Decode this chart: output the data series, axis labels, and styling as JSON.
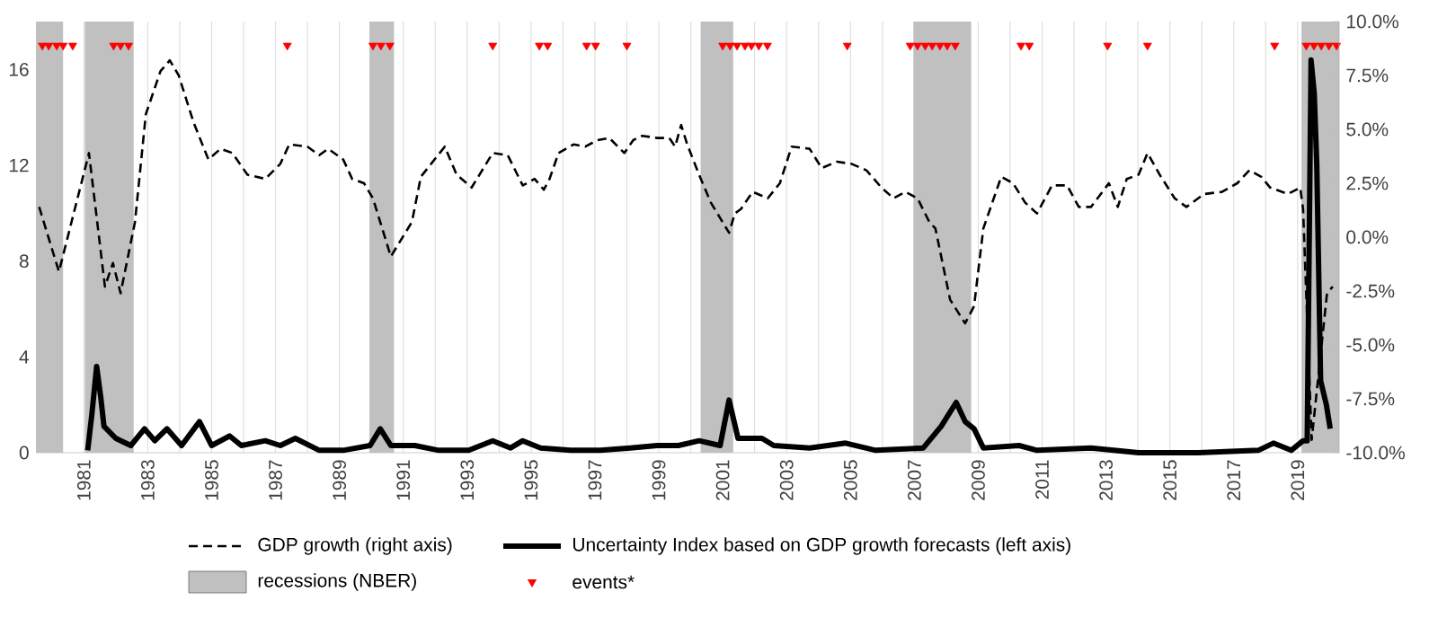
{
  "chart_data": {
    "type": "line",
    "xlim": [
      1980,
      2020.8
    ],
    "xticks": [
      {
        "value": 1980.5,
        "label": null
      },
      {
        "value": 1981.5,
        "label": "1981"
      },
      {
        "value": 1982.5,
        "label": null
      },
      {
        "value": 1983.5,
        "label": "1983"
      },
      {
        "value": 1984.5,
        "label": null
      },
      {
        "value": 1985.5,
        "label": "1985"
      },
      {
        "value": 1986.5,
        "label": null
      },
      {
        "value": 1987.5,
        "label": "1987"
      },
      {
        "value": 1988.5,
        "label": null
      },
      {
        "value": 1989.5,
        "label": "1989"
      },
      {
        "value": 1990.5,
        "label": null
      },
      {
        "value": 1991.5,
        "label": "1991"
      },
      {
        "value": 1992.5,
        "label": null
      },
      {
        "value": 1993.5,
        "label": "1993"
      },
      {
        "value": 1994.5,
        "label": null
      },
      {
        "value": 1995.5,
        "label": "1995"
      },
      {
        "value": 1996.5,
        "label": null
      },
      {
        "value": 1997.5,
        "label": "1997"
      },
      {
        "value": 1998.5,
        "label": null
      },
      {
        "value": 1999.5,
        "label": "1999"
      },
      {
        "value": 2000.5,
        "label": null
      },
      {
        "value": 2001.5,
        "label": "2001"
      },
      {
        "value": 2002.5,
        "label": null
      },
      {
        "value": 2003.5,
        "label": "2003"
      },
      {
        "value": 2004.5,
        "label": null
      },
      {
        "value": 2005.5,
        "label": "2005"
      },
      {
        "value": 2006.5,
        "label": null
      },
      {
        "value": 2007.5,
        "label": "2007"
      },
      {
        "value": 2008.5,
        "label": null
      },
      {
        "value": 2009.5,
        "label": "2009"
      },
      {
        "value": 2010.5,
        "label": null
      },
      {
        "value": 2011.5,
        "label": "2011"
      },
      {
        "value": 2012.5,
        "label": null
      },
      {
        "value": 2013.5,
        "label": "2013"
      },
      {
        "value": 2014.5,
        "label": null
      },
      {
        "value": 2015.5,
        "label": "2015"
      },
      {
        "value": 2016.5,
        "label": null
      },
      {
        "value": 2017.5,
        "label": "2017"
      },
      {
        "value": 2018.5,
        "label": null
      },
      {
        "value": 2019.5,
        "label": "2019"
      },
      {
        "value": 2020.5,
        "label": null
      }
    ],
    "ylim": [
      0,
      18
    ],
    "yticks": [
      0,
      4,
      8,
      12,
      16
    ],
    "y2lim": [
      -10,
      10
    ],
    "y2ticks": [
      {
        "value": -10,
        "label": "-10.0%"
      },
      {
        "value": -7.5,
        "label": "-7.5%"
      },
      {
        "value": -5,
        "label": "-5.0%"
      },
      {
        "value": -2.5,
        "label": "-2.5%"
      },
      {
        "value": 0,
        "label": "0.0%"
      },
      {
        "value": 2.5,
        "label": "2.5%"
      },
      {
        "value": 5,
        "label": "5.0%"
      },
      {
        "value": 7.5,
        "label": "7.5%"
      },
      {
        "value": 10,
        "label": "10.0%"
      }
    ],
    "grid": "x",
    "legend": "bottom",
    "bands": [
      {
        "axis": "x",
        "from": 1980,
        "to": 1980.85,
        "label": "recessions (NBER)",
        "color": "#c0c0c0"
      },
      {
        "axis": "x",
        "from": 1981.53,
        "to": 1983.06,
        "color": "#c0c0c0"
      },
      {
        "axis": "x",
        "from": 1990.44,
        "to": 1991.21,
        "color": "#c0c0c0"
      },
      {
        "axis": "x",
        "from": 2000.81,
        "to": 2001.83,
        "color": "#c0c0c0"
      },
      {
        "axis": "x",
        "from": 2007.47,
        "to": 2009.28,
        "color": "#c0c0c0"
      },
      {
        "axis": "x",
        "from": 2019.62,
        "to": 2020.8,
        "color": "#c0c0c0"
      }
    ],
    "series": [
      {
        "name": "GDP growth (right axis)",
        "axis": "y2",
        "color": "#000000",
        "line_style": "dashed",
        "x": [
          1980.1,
          1980.72,
          1981.66,
          1982.16,
          1982.41,
          1982.65,
          1983.1,
          1983.44,
          1983.9,
          1984.19,
          1984.47,
          1984.94,
          1985.4,
          1985.78,
          1986.15,
          1986.62,
          1987.18,
          1987.65,
          1987.93,
          1988.5,
          1988.87,
          1989.15,
          1989.62,
          1989.9,
          1990.27,
          1990.55,
          1991.11,
          1991.77,
          1992.05,
          1992.8,
          1993.17,
          1993.64,
          1994.3,
          1994.77,
          1995.24,
          1995.61,
          1995.9,
          1996.08,
          1996.36,
          1996.83,
          1997.2,
          1997.58,
          1997.95,
          1998.42,
          1998.7,
          1998.98,
          1999.45,
          1999.83,
          2000.01,
          2000.2,
          2000.39,
          2000.76,
          2001.13,
          2001.7,
          2001.88,
          2002.07,
          2002.44,
          2002.91,
          2003.29,
          2003.66,
          2004.22,
          2004.6,
          2005.07,
          2005.53,
          2006.0,
          2006.47,
          2006.85,
          2007.22,
          2007.6,
          2007.97,
          2008.16,
          2008.62,
          2009.09,
          2009.37,
          2009.66,
          2010.22,
          2010.59,
          2010.97,
          2011.34,
          2011.81,
          2012.28,
          2012.65,
          2013.03,
          2013.59,
          2013.87,
          2014.15,
          2014.52,
          2014.8,
          2015.18,
          2015.65,
          2016.02,
          2016.57,
          2017.13,
          2017.61,
          2017.99,
          2018.36,
          2018.64,
          2019.2,
          2019.58,
          2019.67,
          2019.94,
          2020.42,
          2020.6
        ],
        "values": [
          1.4,
          -1.6,
          3.9,
          -2.3,
          -1.2,
          -2.6,
          0.7,
          5.7,
          7.7,
          8.2,
          7.5,
          5.3,
          3.6,
          4.1,
          3.9,
          2.9,
          2.7,
          3.4,
          4.3,
          4.2,
          3.8,
          4.1,
          3.6,
          2.7,
          2.5,
          1.8,
          -0.9,
          0.7,
          2.8,
          4.2,
          2.9,
          2.3,
          3.9,
          3.8,
          2.4,
          2.7,
          2.2,
          2.7,
          3.9,
          4.3,
          4.2,
          4.5,
          4.6,
          3.9,
          4.5,
          4.7,
          4.6,
          4.6,
          4.2,
          5.2,
          4.3,
          2.9,
          1.6,
          0.2,
          1.1,
          1.3,
          2.1,
          1.8,
          2.5,
          4.2,
          4.1,
          3.2,
          3.5,
          3.4,
          3.1,
          2.3,
          1.8,
          2.1,
          1.8,
          0.7,
          0.4,
          -2.9,
          -4.0,
          -3.2,
          0.4,
          2.8,
          2.5,
          1.6,
          1.1,
          2.4,
          2.4,
          1.4,
          1.4,
          2.5,
          1.4,
          2.7,
          2.9,
          3.9,
          2.9,
          1.8,
          1.4,
          2.0,
          2.1,
          2.5,
          3.1,
          2.8,
          2.3,
          2.0,
          2.3,
          1.3,
          -9.4,
          -2.6,
          -2.3
        ]
      },
      {
        "name": "Uncertainty Index based on GDP growth forecasts (left axis)",
        "color": "#000000",
        "line_style": "solid",
        "x": [
          1981.62,
          1981.75,
          1981.9,
          1982.03,
          1982.13,
          1982.5,
          1982.97,
          1983.4,
          1983.72,
          1984.1,
          1984.56,
          1985.12,
          1985.5,
          1986.06,
          1986.43,
          1987.18,
          1987.65,
          1988.12,
          1988.87,
          1989.62,
          1990.46,
          1990.78,
          1991.11,
          1991.86,
          1992.61,
          1993.55,
          1994.3,
          1994.86,
          1995.24,
          1995.8,
          1996.74,
          1997.67,
          1998.61,
          1999.45,
          2000.11,
          2000.76,
          2001.42,
          2001.7,
          2001.98,
          2002.73,
          2003.1,
          2004.22,
          2005.35,
          2006.29,
          2007.78,
          2008.34,
          2008.81,
          2009.09,
          2009.37,
          2009.66,
          2010.78,
          2011.34,
          2013.03,
          2014.52,
          2016.39,
          2018.27,
          2018.74,
          2019.3,
          2019.67,
          2019.8,
          2019.92,
          2020.02,
          2020.1,
          2020.22,
          2020.4,
          2020.52
        ],
        "values": [
          0.1,
          1.6,
          3.6,
          2.3,
          1.1,
          0.6,
          0.3,
          1.0,
          0.5,
          1.0,
          0.3,
          1.3,
          0.3,
          0.7,
          0.3,
          0.5,
          0.3,
          0.6,
          0.1,
          0.1,
          0.3,
          1.0,
          0.3,
          0.3,
          0.1,
          0.1,
          0.5,
          0.2,
          0.5,
          0.2,
          0.1,
          0.1,
          0.2,
          0.3,
          0.3,
          0.5,
          0.3,
          2.2,
          0.6,
          0.6,
          0.3,
          0.2,
          0.4,
          0.1,
          0.2,
          1.1,
          2.1,
          1.3,
          1.0,
          0.2,
          0.3,
          0.1,
          0.2,
          0.0,
          0.0,
          0.1,
          0.4,
          0.1,
          0.5,
          0.5,
          16.4,
          15.0,
          12.0,
          3.0,
          2.0,
          1.0
        ]
      },
      {
        "name": "events*",
        "type": "scatter",
        "marker": "triangle",
        "color": "#ff0000",
        "x": [
          1980.2,
          1980.4,
          1980.65,
          1980.85,
          1981.15,
          1982.43,
          1982.65,
          1982.9,
          1987.87,
          1990.55,
          1990.8,
          1991.08,
          1994.3,
          1995.76,
          1996.02,
          1997.24,
          1997.52,
          1998.5,
          2001.5,
          2001.73,
          2001.95,
          2002.2,
          2002.4,
          2002.63,
          2002.9,
          2005.4,
          2007.37,
          2007.6,
          2007.84,
          2008.06,
          2008.3,
          2008.53,
          2008.78,
          2010.84,
          2011.1,
          2013.55,
          2014.8,
          2018.78,
          2019.77,
          2020.01,
          2020.24,
          2020.48,
          2020.72
        ],
        "values": [
          17,
          17,
          17,
          17,
          17,
          17,
          17,
          17,
          17,
          17,
          17,
          17,
          17,
          17,
          17,
          17,
          17,
          17,
          17,
          17,
          17,
          17,
          17,
          17,
          17,
          17,
          17,
          17,
          17,
          17,
          17,
          17,
          17,
          17,
          17,
          17,
          17,
          17,
          17,
          17,
          17,
          17,
          17
        ]
      }
    ]
  }
}
